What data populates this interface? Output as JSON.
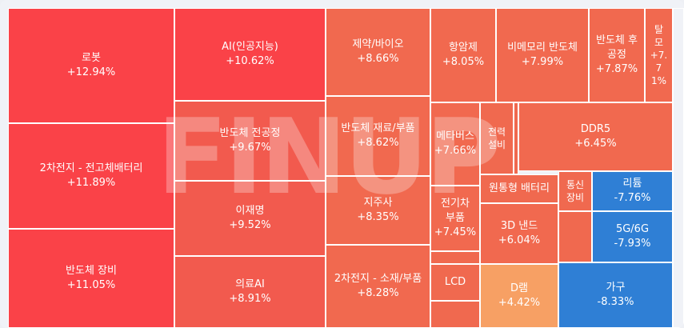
{
  "watermark": "FINUP",
  "chart_data": {
    "type": "treemap",
    "title": "",
    "colors": {
      "up_strong": "#fa4248",
      "up_medium": "#f25a4e",
      "up_mild": "#f1694f",
      "up_light": "#f7a064",
      "down": "#2f7fd5",
      "empty": "#f0694f"
    },
    "items": [
      {
        "name": "로봇",
        "change": "+12.94%",
        "value": 12.94
      },
      {
        "name": "2차전지 - 전고체배터리",
        "change": "+11.89%",
        "value": 11.89
      },
      {
        "name": "반도체 장비",
        "change": "+11.05%",
        "value": 11.05
      },
      {
        "name": "AI(인공지능)",
        "change": "+10.62%",
        "value": 10.62
      },
      {
        "name": "반도체 전공정",
        "change": "+9.67%",
        "value": 9.67
      },
      {
        "name": "이재명",
        "change": "+9.52%",
        "value": 9.52
      },
      {
        "name": "의료AI",
        "change": "+8.91%",
        "value": 8.91
      },
      {
        "name": "제약/바이오",
        "change": "+8.66%",
        "value": 8.66
      },
      {
        "name": "반도체 재료/부품",
        "change": "+8.62%",
        "value": 8.62
      },
      {
        "name": "지주사",
        "change": "+8.35%",
        "value": 8.35
      },
      {
        "name": "2차전지 - 소재/부품",
        "change": "+8.28%",
        "value": 8.28
      },
      {
        "name": "항암제",
        "change": "+8.05%",
        "value": 8.05
      },
      {
        "name": "비메모리 반도체",
        "change": "+7.99%",
        "value": 7.99
      },
      {
        "name": "반도체 후\n공정",
        "change": "+7.87%",
        "value": 7.87
      },
      {
        "name": "탈\n모",
        "change": "+7.\n7\n1%",
        "value": 7.71
      },
      {
        "name": "메타버스",
        "change": "+7.66%",
        "value": 7.66
      },
      {
        "name": "전력\n설비",
        "change": "",
        "value": null
      },
      {
        "name": "DDR5",
        "change": "+6.45%",
        "value": 6.45
      },
      {
        "name": "전기차\n부품",
        "change": "+7.45%",
        "value": 7.45
      },
      {
        "name": "원통형 배터리",
        "change": "",
        "value": null
      },
      {
        "name": "통신\n장비",
        "change": "",
        "value": null
      },
      {
        "name": "리튬",
        "change": "-7.76%",
        "value": -7.76
      },
      {
        "name": "3D 낸드",
        "change": "+6.04%",
        "value": 6.04
      },
      {
        "name": "5G/6G",
        "change": "-7.93%",
        "value": -7.93
      },
      {
        "name": "LCD",
        "change": "",
        "value": null
      },
      {
        "name": "D램",
        "change": "+4.42%",
        "value": 4.42
      },
      {
        "name": "가구",
        "change": "-8.33%",
        "value": -8.33
      },
      {
        "name": "",
        "change": "",
        "value": null
      },
      {
        "name": "",
        "change": "",
        "value": null
      },
      {
        "name": "",
        "change": "",
        "value": null
      },
      {
        "name": "",
        "change": "",
        "value": null
      },
      {
        "name": "",
        "change": "",
        "value": null
      }
    ]
  }
}
